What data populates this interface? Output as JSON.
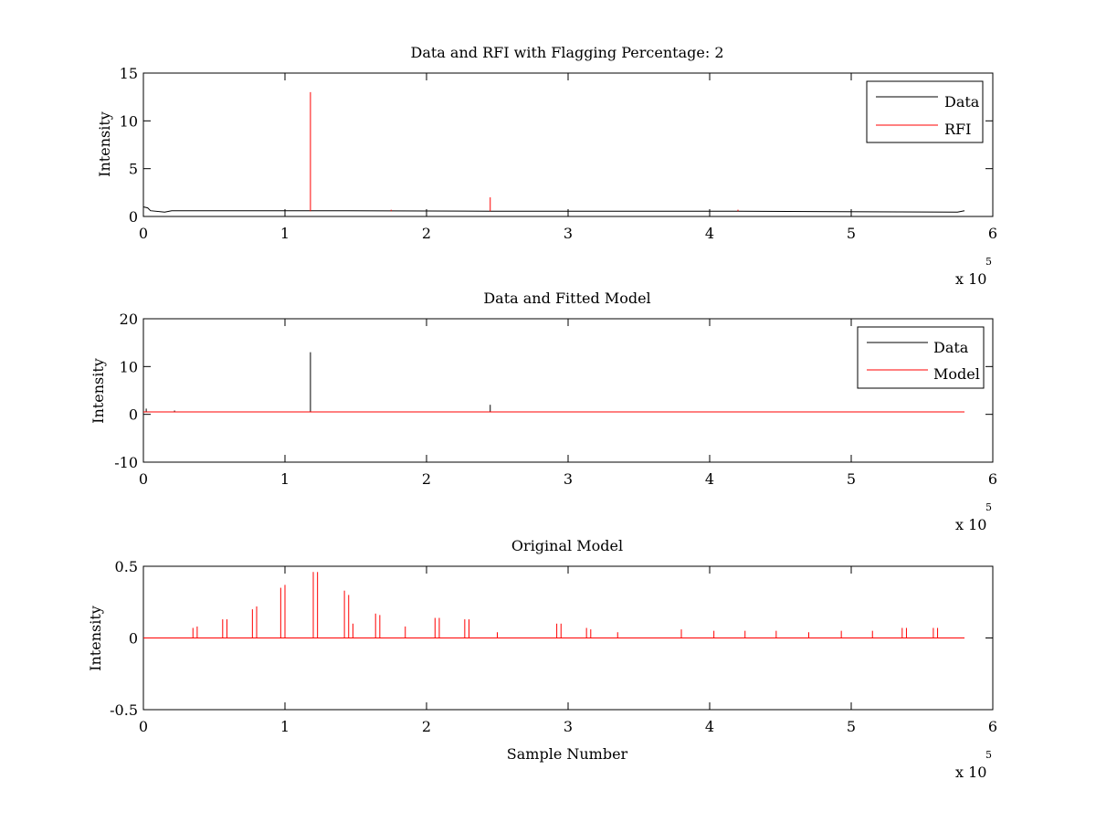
{
  "chart_data": [
    {
      "type": "line",
      "title": "Data and RFI with Flagging Percentage: 2",
      "xlabel": "",
      "ylabel": "Intensity",
      "xlim": [
        0,
        6
      ],
      "ylim": [
        0,
        15
      ],
      "x_scale_label": "x 10",
      "x_scale_exponent": "5",
      "xticks": [
        "0",
        "1",
        "2",
        "3",
        "4",
        "5",
        "6"
      ],
      "yticks": [
        "0",
        "5",
        "10",
        "15"
      ],
      "legend": {
        "placement": "top-right",
        "entries": [
          "Data",
          "RFI"
        ]
      },
      "colors": {
        "Data": "#000000",
        "RFI": "#ff0000"
      },
      "series": [
        {
          "name": "Data",
          "baseline": 0.55,
          "values": [
            [
              0,
              1.0
            ],
            [
              0.03,
              0.9
            ],
            [
              0.05,
              0.6
            ],
            [
              0.15,
              0.45
            ],
            [
              0.2,
              0.6
            ],
            [
              1.18,
              0.6
            ],
            [
              2.45,
              0.55
            ],
            [
              4.2,
              0.55
            ],
            [
              5.75,
              0.45
            ],
            [
              5.8,
              0.6
            ]
          ]
        },
        {
          "name": "RFI",
          "spikes": [
            [
              1.18,
              13
            ],
            [
              2.45,
              2
            ],
            [
              1.75,
              0.7
            ],
            [
              4.2,
              0.7
            ]
          ]
        }
      ]
    },
    {
      "type": "line",
      "title": "Data and Fitted Model",
      "xlabel": "",
      "ylabel": "Intensity",
      "xlim": [
        0,
        6
      ],
      "ylim": [
        -10,
        20
      ],
      "x_scale_label": "x 10",
      "x_scale_exponent": "5",
      "xticks": [
        "0",
        "1",
        "2",
        "3",
        "4",
        "5",
        "6"
      ],
      "yticks": [
        "-10",
        "0",
        "10",
        "20"
      ],
      "legend": {
        "placement": "top-right",
        "entries": [
          "Data",
          "Model"
        ]
      },
      "colors": {
        "Data": "#000000",
        "Model": "#ff0000"
      },
      "series": [
        {
          "name": "Data",
          "baseline": 0.5,
          "spikes": [
            [
              1.18,
              13
            ],
            [
              2.45,
              2
            ],
            [
              0.02,
              1.2
            ],
            [
              0.22,
              0.8
            ]
          ]
        },
        {
          "name": "Model",
          "baseline": 0.5
        }
      ]
    },
    {
      "type": "line",
      "title": "Original Model",
      "xlabel": "Sample Number",
      "ylabel": "Intensity",
      "xlim": [
        0,
        6
      ],
      "ylim": [
        -0.5,
        0.5
      ],
      "x_scale_label": "x 10",
      "x_scale_exponent": "5",
      "xticks": [
        "0",
        "1",
        "2",
        "3",
        "4",
        "5",
        "6"
      ],
      "yticks": [
        "-0.5",
        "0",
        "0.5"
      ],
      "colors": {
        "Model": "#ff0000"
      },
      "series": [
        {
          "name": "",
          "baseline": 0.0,
          "spikes": [
            [
              0.35,
              0.07
            ],
            [
              0.38,
              0.08
            ],
            [
              0.56,
              0.13
            ],
            [
              0.59,
              0.13
            ],
            [
              0.77,
              0.2
            ],
            [
              0.8,
              0.22
            ],
            [
              0.97,
              0.35
            ],
            [
              1.0,
              0.37
            ],
            [
              1.2,
              0.46
            ],
            [
              1.23,
              0.46
            ],
            [
              1.42,
              0.33
            ],
            [
              1.45,
              0.3
            ],
            [
              1.48,
              0.1
            ],
            [
              1.64,
              0.17
            ],
            [
              1.67,
              0.16
            ],
            [
              1.85,
              0.08
            ],
            [
              2.06,
              0.14
            ],
            [
              2.09,
              0.14
            ],
            [
              2.27,
              0.13
            ],
            [
              2.3,
              0.13
            ],
            [
              2.5,
              0.04
            ],
            [
              2.92,
              0.1
            ],
            [
              2.95,
              0.1
            ],
            [
              3.13,
              0.07
            ],
            [
              3.16,
              0.06
            ],
            [
              3.35,
              0.04
            ],
            [
              3.8,
              0.06
            ],
            [
              4.03,
              0.05
            ],
            [
              4.25,
              0.05
            ],
            [
              4.47,
              0.05
            ],
            [
              4.7,
              0.04
            ],
            [
              4.93,
              0.05
            ],
            [
              5.15,
              0.05
            ],
            [
              5.36,
              0.07
            ],
            [
              5.39,
              0.07
            ],
            [
              5.58,
              0.07
            ],
            [
              5.61,
              0.07
            ]
          ]
        }
      ]
    }
  ]
}
